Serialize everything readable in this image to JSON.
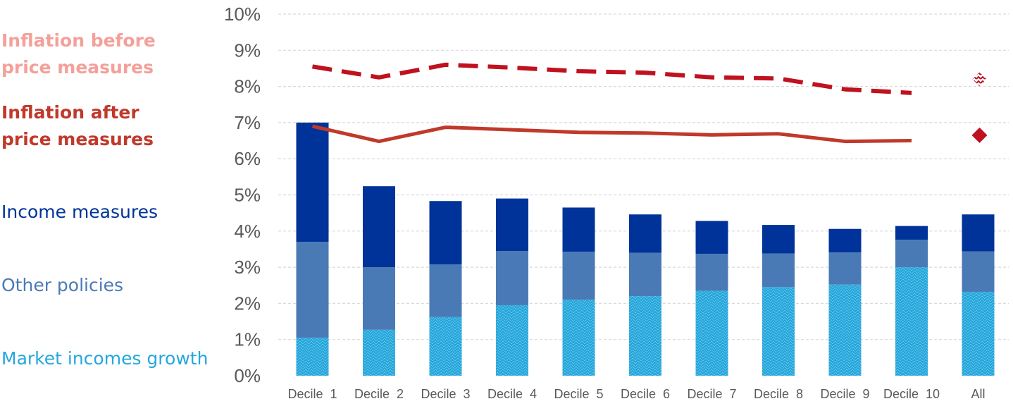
{
  "chart_data": {
    "type": "bar",
    "stacked": true,
    "categories": [
      "Decile 1",
      "Decile 2",
      "Decile 3",
      "Decile 4",
      "Decile 5",
      "Decile 6",
      "Decile 7",
      "Decile 8",
      "Decile 9",
      "Decile 10",
      "All"
    ],
    "category_labels": [
      "Decile  1",
      "Decile  2",
      "Decile  3",
      "Decile  4",
      "Decile  5",
      "Decile  6",
      "Decile  7",
      "Decile  8",
      "Decile  9",
      "Decile  10",
      "All"
    ],
    "y_tick_labels": [
      "0%",
      "1%",
      "2%",
      "3%",
      "4%",
      "5%",
      "6%",
      "7%",
      "8%",
      "9%",
      "10%"
    ],
    "ylim": [
      0,
      10
    ],
    "grid": "horizontal dashed",
    "legend_placement": "left",
    "series": [
      {
        "name": "Market incomes growth",
        "kind": "bar",
        "pattern": "zigzag hatch",
        "color": "#25A7DC",
        "values": [
          1.05,
          1.27,
          1.62,
          1.95,
          2.1,
          2.2,
          2.35,
          2.45,
          2.52,
          3.0,
          2.32
        ]
      },
      {
        "name": "Other policies",
        "kind": "bar",
        "color": "#4A7AB5",
        "values": [
          2.65,
          1.73,
          1.46,
          1.5,
          1.33,
          1.2,
          1.02,
          0.93,
          0.89,
          0.76,
          1.12
        ]
      },
      {
        "name": "Income measures",
        "kind": "bar",
        "color": "#003399",
        "values": [
          3.3,
          2.24,
          1.75,
          1.45,
          1.22,
          1.06,
          0.91,
          0.79,
          0.65,
          0.38,
          1.02
        ]
      },
      {
        "name": "Inflation before price measures",
        "kind": "line",
        "style": "dashed",
        "color": "#C0111F",
        "values": [
          8.55,
          8.25,
          8.6,
          8.52,
          8.42,
          8.38,
          8.25,
          8.22,
          7.92,
          7.82,
          null
        ],
        "all_marker": {
          "value": 8.2,
          "shape": "hatched diamond"
        }
      },
      {
        "name": "Inflation after price measures",
        "kind": "line",
        "style": "solid",
        "color": "#C0392B",
        "values": [
          6.9,
          6.48,
          6.87,
          6.8,
          6.73,
          6.71,
          6.66,
          6.69,
          6.48,
          6.5,
          null
        ],
        "all_marker": {
          "value": 6.65,
          "shape": "diamond"
        }
      }
    ]
  },
  "legend": {
    "inflation_before": "Inflation before price measures",
    "inflation_after": "Inflation after price measures",
    "income_measures": "Income measures",
    "other_policies": "Other policies",
    "market_incomes": "Market incomes growth"
  },
  "colors": {
    "inflation_before_text": "#F4A09A",
    "inflation_after_text": "#C0392B",
    "income_measures": "#003399",
    "other_policies": "#4A7AB5",
    "market_incomes": "#25A7DC",
    "dashed_line": "#C0111F",
    "diamond": "#C0111F"
  }
}
